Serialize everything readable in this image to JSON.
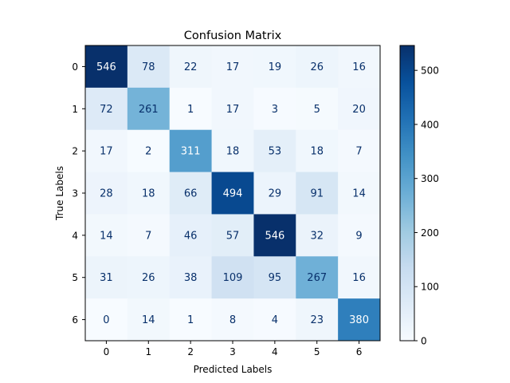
{
  "chart_data": {
    "type": "heatmap",
    "title": "Confusion Matrix",
    "xlabel": "Predicted Labels",
    "ylabel": "True Labels",
    "x_labels": [
      "0",
      "1",
      "2",
      "3",
      "4",
      "5",
      "6"
    ],
    "y_labels": [
      "0",
      "1",
      "2",
      "3",
      "4",
      "5",
      "6"
    ],
    "matrix": [
      [
        546,
        78,
        22,
        17,
        19,
        26,
        16
      ],
      [
        72,
        261,
        1,
        17,
        3,
        5,
        20
      ],
      [
        17,
        2,
        311,
        18,
        53,
        18,
        7
      ],
      [
        28,
        18,
        66,
        494,
        29,
        91,
        14
      ],
      [
        14,
        7,
        46,
        57,
        546,
        32,
        9
      ],
      [
        31,
        26,
        38,
        109,
        95,
        267,
        16
      ],
      [
        0,
        14,
        1,
        8,
        4,
        23,
        380
      ]
    ],
    "colorbar": {
      "min": 0,
      "max": 546,
      "ticks": [
        0,
        100,
        200,
        300,
        400,
        500
      ]
    },
    "colormap": "Blues"
  }
}
